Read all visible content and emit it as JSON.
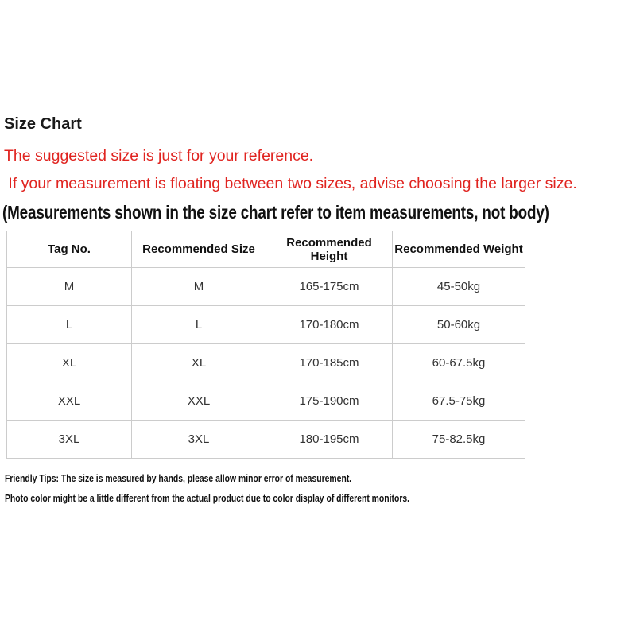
{
  "colors": {
    "accent_red": "#e02420",
    "table_border": "#cccccc",
    "heading_text": "#111111",
    "cell_text": "#333333",
    "background": "#ffffff"
  },
  "heading": "Size Chart",
  "notices": [
    "The suggested size is just for your reference.",
    " If your measurement is floating between two sizes, advise choosing the larger size."
  ],
  "measurement_note": "(Measurements shown in the size chart refer to item measurements, not body)",
  "size_table": {
    "headers": [
      "Tag No.",
      "Recommended Size",
      "Recommended Height",
      "Recommended Weight"
    ],
    "rows": [
      [
        "M",
        "M",
        "165-175cm",
        "45-50kg"
      ],
      [
        "L",
        "L",
        "170-180cm",
        "50-60kg"
      ],
      [
        "XL",
        "XL",
        "170-185cm",
        "60-67.5kg"
      ],
      [
        "XXL",
        "XXL",
        "175-190cm",
        "67.5-75kg"
      ],
      [
        "3XL",
        "3XL",
        "180-195cm",
        "75-82.5kg"
      ]
    ]
  },
  "footnotes": [
    "Friendly Tips: The size is measured by hands, please allow minor error of measurement.",
    "Photo color might be a little different from the actual product due to color display of different monitors."
  ]
}
